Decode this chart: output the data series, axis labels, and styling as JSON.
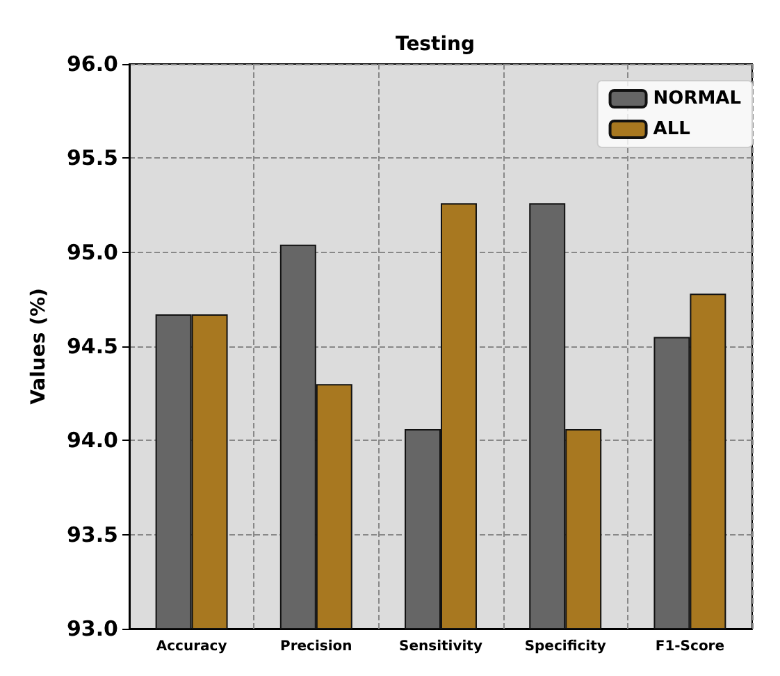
{
  "chart_data": {
    "type": "bar",
    "title": "Testing",
    "ylabel": "Values (%)",
    "categories": [
      "Accuracy",
      "Precision",
      "Sensitivity",
      "Specificity",
      "F1-Score"
    ],
    "series": [
      {
        "name": "NORMAL",
        "color": "#666666",
        "values": [
          94.67,
          95.04,
          94.06,
          95.26,
          94.55
        ]
      },
      {
        "name": "ALL",
        "color": "#a87820",
        "values": [
          94.67,
          94.3,
          95.26,
          94.06,
          94.78
        ]
      }
    ],
    "ylim": [
      93.0,
      96.0
    ],
    "yticks": [
      {
        "value": 93,
        "label": "93.0"
      },
      93.5,
      {
        "value": 94,
        "label": "94.0"
      },
      94.5,
      {
        "value": 95,
        "label": "95.0"
      },
      95.5,
      {
        "value": 96,
        "label": "96.0"
      }
    ],
    "grid": true,
    "legend": "top right"
  }
}
